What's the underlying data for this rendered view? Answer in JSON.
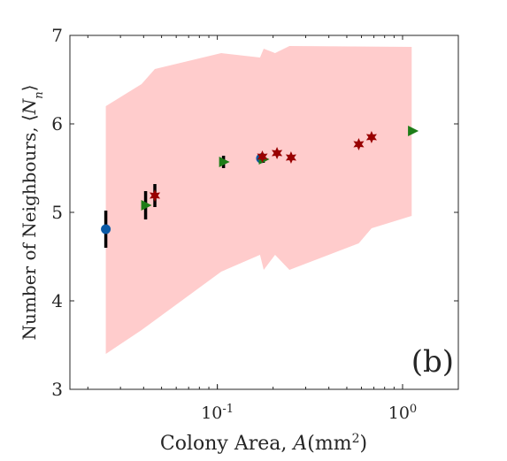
{
  "chart_data": {
    "type": "scatter",
    "panel_label": "(b)",
    "xlabel_prefix": "Colony Area, ",
    "xlabel_var": "A",
    "xlabel_unit_open": "(mm",
    "xlabel_unit_sup": "2",
    "xlabel_unit_close": ")",
    "ylabel_prefix": "Number of Neighbours, ",
    "ylabel_var": "N",
    "ylabel_sub": "n",
    "xscale": "log",
    "xlim": [
      0.016,
      2.0
    ],
    "ylim": [
      3,
      7
    ],
    "x_ticks": [
      {
        "value": 0.1,
        "base": "10",
        "exp": "-1"
      },
      {
        "value": 1.0,
        "base": "10",
        "exp": "0"
      }
    ],
    "y_ticks": [
      3,
      4,
      5,
      6,
      7
    ],
    "grid": false,
    "band": {
      "color": "#ffcccc",
      "upper": [
        [
          0.025,
          6.2
        ],
        [
          0.039,
          6.45
        ],
        [
          0.046,
          6.62
        ],
        [
          0.105,
          6.8
        ],
        [
          0.17,
          6.75
        ],
        [
          0.178,
          6.85
        ],
        [
          0.205,
          6.8
        ],
        [
          0.245,
          6.88
        ],
        [
          1.12,
          6.87
        ]
      ],
      "lower": [
        [
          0.025,
          3.4
        ],
        [
          0.039,
          3.67
        ],
        [
          0.046,
          3.78
        ],
        [
          0.105,
          4.33
        ],
        [
          0.17,
          4.52
        ],
        [
          0.178,
          4.35
        ],
        [
          0.205,
          4.52
        ],
        [
          0.245,
          4.35
        ],
        [
          0.58,
          4.65
        ],
        [
          0.68,
          4.82
        ],
        [
          1.12,
          4.96
        ]
      ]
    },
    "series": [
      {
        "marker": "circle",
        "color": "#0b5aa6",
        "points": [
          [
            0.025,
            4.81,
            0.21
          ],
          [
            0.172,
            5.61,
            0.04
          ]
        ]
      },
      {
        "marker": "triangle-right",
        "color": "#1e7d18",
        "points": [
          [
            0.041,
            5.08,
            0.16
          ],
          [
            0.108,
            5.57,
            0.07
          ],
          [
            0.177,
            5.6,
            0.04
          ],
          [
            1.13,
            5.92,
            0.02
          ]
        ]
      },
      {
        "marker": "star",
        "color": "#990000",
        "points": [
          [
            0.046,
            5.19,
            0.13
          ],
          [
            0.175,
            5.63,
            0.04
          ],
          [
            0.21,
            5.67,
            0.03
          ],
          [
            0.25,
            5.62,
            0.02
          ],
          [
            0.58,
            5.77,
            0.02
          ],
          [
            0.68,
            5.85,
            0.02
          ]
        ]
      }
    ]
  }
}
